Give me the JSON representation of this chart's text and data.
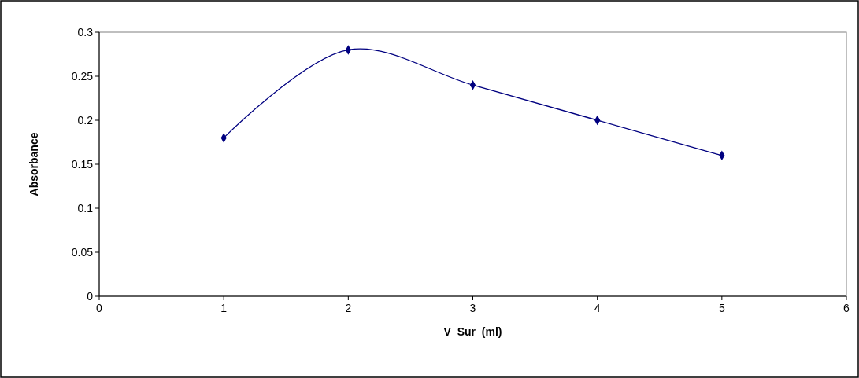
{
  "chart_data": {
    "type": "line",
    "xlabel": "V  Sur  (ml)",
    "ylabel": "Absorbance",
    "x": [
      1,
      2,
      3,
      4,
      5
    ],
    "series": [
      {
        "color": "#000080",
        "values": [
          0.18,
          0.28,
          0.24,
          0.2,
          0.16
        ]
      }
    ],
    "xlim": [
      0,
      6
    ],
    "xticks": [
      0,
      1,
      2,
      3,
      4,
      5,
      6
    ],
    "ylim": [
      0,
      0.3
    ],
    "yticks": [
      0,
      0.05,
      0.1,
      0.15,
      0.2,
      0.25,
      0.3
    ],
    "marker": "diamond",
    "line_style": "solid",
    "grid": false
  }
}
